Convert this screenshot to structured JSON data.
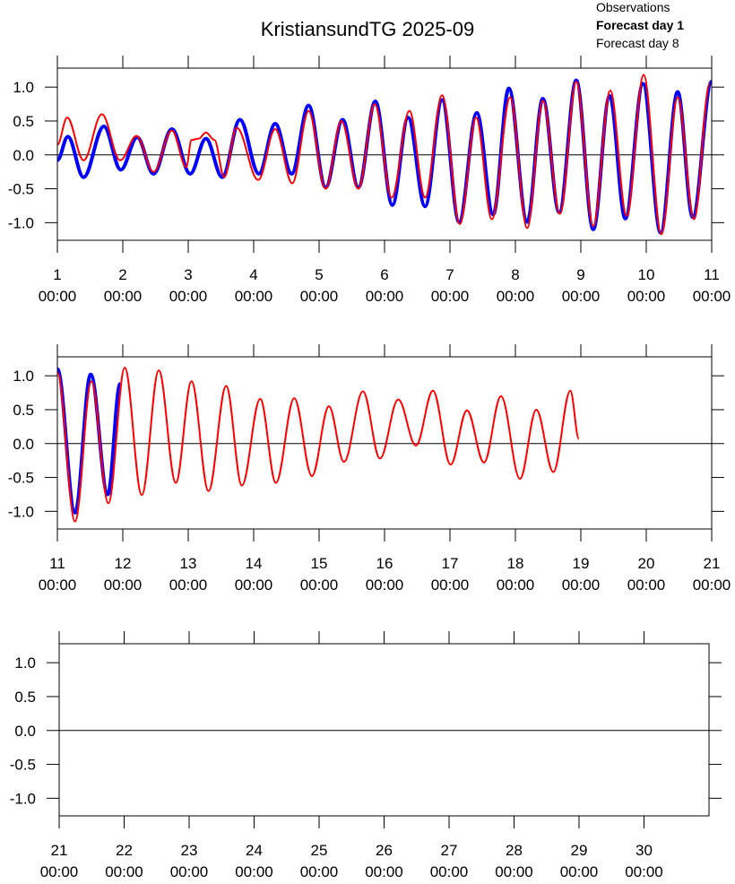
{
  "chart_data": [
    {
      "type": "line",
      "title": "KristiansundTG 2025-09",
      "legend": "top right",
      "zero_line": true,
      "xlim": [
        1,
        11
      ],
      "ylim": [
        -1.26,
        1.28
      ],
      "xticks": [
        {
          "value": 1,
          "label": [
            "1",
            "00:00"
          ]
        },
        {
          "value": 2,
          "label": [
            "2",
            "00:00"
          ]
        },
        {
          "value": 3,
          "label": [
            "3",
            "00:00"
          ]
        },
        {
          "value": 4,
          "label": [
            "4",
            "00:00"
          ]
        },
        {
          "value": 5,
          "label": [
            "5",
            "00:00"
          ]
        },
        {
          "value": 6,
          "label": [
            "6",
            "00:00"
          ]
        },
        {
          "value": 7,
          "label": [
            "7",
            "00:00"
          ]
        },
        {
          "value": 8,
          "label": [
            "8",
            "00:00"
          ]
        },
        {
          "value": 9,
          "label": [
            "9",
            "00:00"
          ]
        },
        {
          "value": 10,
          "label": [
            "10",
            "00:00"
          ]
        },
        {
          "value": 11,
          "label": [
            "11",
            "00:00"
          ]
        }
      ],
      "yticks": [
        {
          "value": -1,
          "label": "-1.0"
        },
        {
          "value": -0.5,
          "label": "-0.5"
        },
        {
          "value": 0,
          "label": "0.0"
        },
        {
          "value": 0.5,
          "label": "0.5"
        },
        {
          "value": 1,
          "label": "1.0"
        }
      ],
      "series": [
        {
          "name": "Observations",
          "color": "#000000",
          "line_width": 2,
          "font_weight": "normal",
          "x": [],
          "values": []
        },
        {
          "name": "Forecast day 1",
          "color": "#0000ff",
          "line_width": 4,
          "font_weight": "bold",
          "x": [
            1.0,
            1.16,
            1.4,
            1.71,
            1.97,
            2.22,
            2.47,
            2.75,
            3.03,
            3.27,
            3.52,
            3.79,
            4.08,
            4.33,
            4.58,
            4.84,
            5.1,
            5.36,
            5.6,
            5.86,
            6.12,
            6.36,
            6.62,
            6.88,
            7.14,
            7.41,
            7.66,
            7.9,
            8.18,
            8.42,
            8.67,
            8.93,
            9.19,
            9.44,
            9.68,
            9.95,
            10.22,
            10.48,
            10.71,
            11.0
          ],
          "values": [
            -0.08,
            0.27,
            -0.33,
            0.42,
            -0.22,
            0.26,
            -0.28,
            0.38,
            -0.28,
            0.24,
            -0.33,
            0.52,
            -0.28,
            0.46,
            -0.28,
            0.73,
            -0.48,
            0.52,
            -0.48,
            0.79,
            -0.74,
            0.55,
            -0.76,
            0.81,
            -0.99,
            0.62,
            -0.88,
            0.98,
            -0.99,
            0.83,
            -0.85,
            1.1,
            -1.1,
            0.87,
            -0.94,
            1.05,
            -1.15,
            0.93,
            -0.92,
            1.08
          ]
        },
        {
          "name": "Forecast day 8",
          "color": "#ff0000",
          "line_width": 2,
          "font_weight": "normal",
          "x": [
            1.0,
            1.15,
            1.4,
            1.68,
            1.96,
            2.21,
            2.47,
            2.75,
            2.97,
            3.05,
            3.16,
            3.27,
            3.4,
            3.55,
            3.74,
            4.07,
            4.33,
            4.59,
            4.84,
            5.1,
            5.34,
            5.6,
            5.85,
            6.11,
            6.38,
            6.62,
            6.88,
            7.15,
            7.4,
            7.64,
            7.92,
            8.18,
            8.42,
            8.68,
            8.93,
            9.19,
            9.45,
            9.7,
            9.96,
            10.23,
            10.48,
            10.73,
            10.97
          ],
          "values": [
            0.15,
            0.55,
            -0.08,
            0.6,
            -0.08,
            0.28,
            -0.25,
            0.36,
            -0.18,
            0.22,
            0.24,
            0.33,
            0.22,
            -0.33,
            0.4,
            -0.37,
            0.38,
            -0.42,
            0.65,
            -0.5,
            0.5,
            -0.5,
            0.75,
            -0.63,
            0.65,
            -0.63,
            0.88,
            -1.02,
            0.55,
            -0.95,
            0.85,
            -1.08,
            0.8,
            -0.87,
            1.08,
            -1.05,
            0.95,
            -0.9,
            1.18,
            -1.17,
            0.85,
            -0.95,
            1.05
          ]
        }
      ]
    },
    {
      "type": "line",
      "zero_line": true,
      "xlim": [
        11,
        21
      ],
      "ylim": [
        -1.26,
        1.28
      ],
      "xticks": [
        {
          "value": 11,
          "label": [
            "11",
            "00:00"
          ]
        },
        {
          "value": 12,
          "label": [
            "12",
            "00:00"
          ]
        },
        {
          "value": 13,
          "label": [
            "13",
            "00:00"
          ]
        },
        {
          "value": 14,
          "label": [
            "14",
            "00:00"
          ]
        },
        {
          "value": 15,
          "label": [
            "15",
            "00:00"
          ]
        },
        {
          "value": 16,
          "label": [
            "16",
            "00:00"
          ]
        },
        {
          "value": 17,
          "label": [
            "17",
            "00:00"
          ]
        },
        {
          "value": 18,
          "label": [
            "18",
            "00:00"
          ]
        },
        {
          "value": 19,
          "label": [
            "19",
            "00:00"
          ]
        },
        {
          "value": 20,
          "label": [
            "20",
            "00:00"
          ]
        },
        {
          "value": 21,
          "label": [
            "21",
            "00:00"
          ]
        }
      ],
      "yticks": [
        {
          "value": -1,
          "label": "-1.0"
        },
        {
          "value": -0.5,
          "label": "-0.5"
        },
        {
          "value": 0,
          "label": "0.0"
        },
        {
          "value": 0.5,
          "label": "0.5"
        },
        {
          "value": 1,
          "label": "1.0"
        }
      ],
      "series": [
        {
          "name": "Observations",
          "color": "#000000",
          "line_width": 2,
          "x": [],
          "values": []
        },
        {
          "name": "Forecast day 1",
          "color": "#0000ff",
          "line_width": 4,
          "x": [
            11.0,
            11.27,
            11.51,
            11.77,
            11.96
          ],
          "values": [
            1.1,
            -1.02,
            1.02,
            -0.75,
            0.88
          ]
        },
        {
          "name": "Forecast day 8",
          "color": "#ff0000",
          "line_width": 2,
          "x": [
            11.0,
            11.27,
            11.52,
            11.78,
            12.03,
            12.29,
            12.55,
            12.81,
            13.05,
            13.31,
            13.58,
            13.82,
            14.1,
            14.34,
            14.62,
            14.89,
            15.15,
            15.38,
            15.67,
            15.93,
            16.21,
            16.48,
            16.74,
            17.01,
            17.26,
            17.52,
            17.78,
            18.07,
            18.32,
            18.58,
            18.84,
            18.97
          ],
          "values": [
            1.05,
            -1.15,
            0.92,
            -0.88,
            1.12,
            -0.76,
            1.08,
            -0.58,
            0.92,
            -0.7,
            0.85,
            -0.62,
            0.66,
            -0.58,
            0.67,
            -0.48,
            0.55,
            -0.27,
            0.77,
            -0.22,
            0.65,
            -0.03,
            0.78,
            -0.31,
            0.49,
            -0.28,
            0.7,
            -0.52,
            0.5,
            -0.42,
            0.78,
            0.07
          ]
        }
      ]
    },
    {
      "type": "line",
      "zero_line": true,
      "xlim": [
        21,
        31
      ],
      "ylim": [
        -1.26,
        1.28
      ],
      "xticks": [
        {
          "value": 21,
          "label": [
            "21",
            "00:00"
          ]
        },
        {
          "value": 22,
          "label": [
            "22",
            "00:00"
          ]
        },
        {
          "value": 23,
          "label": [
            "23",
            "00:00"
          ]
        },
        {
          "value": 24,
          "label": [
            "24",
            "00:00"
          ]
        },
        {
          "value": 25,
          "label": [
            "25",
            "00:00"
          ]
        },
        {
          "value": 26,
          "label": [
            "26",
            "00:00"
          ]
        },
        {
          "value": 27,
          "label": [
            "27",
            "00:00"
          ]
        },
        {
          "value": 28,
          "label": [
            "28",
            "00:00"
          ]
        },
        {
          "value": 29,
          "label": [
            "29",
            "00:00"
          ]
        },
        {
          "value": 30,
          "label": [
            "30",
            "00:00"
          ]
        }
      ],
      "yticks": [
        {
          "value": -1,
          "label": "-1.0"
        },
        {
          "value": -0.5,
          "label": "-0.5"
        },
        {
          "value": 0,
          "label": "0.0"
        },
        {
          "value": 0.5,
          "label": "0.5"
        },
        {
          "value": 1,
          "label": "1.0"
        }
      ],
      "series": [
        {
          "name": "Observations",
          "color": "#000000",
          "line_width": 2,
          "x": [],
          "values": []
        },
        {
          "name": "Forecast day 1",
          "color": "#0000ff",
          "line_width": 4,
          "x": [],
          "values": []
        },
        {
          "name": "Forecast day 8",
          "color": "#ff0000",
          "line_width": 2,
          "x": [],
          "values": []
        }
      ]
    }
  ]
}
